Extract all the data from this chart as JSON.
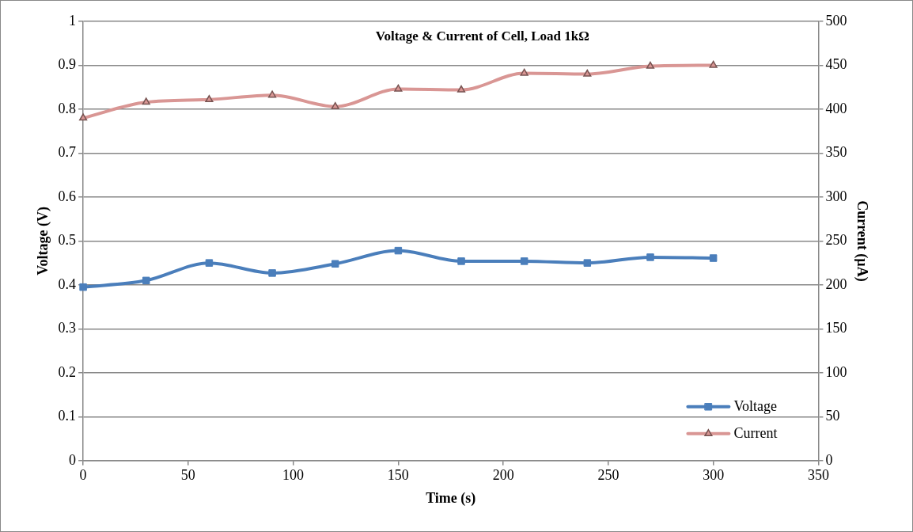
{
  "chart_data": {
    "type": "line",
    "title": "Voltage & Current of Cell, Load 1kΩ",
    "xlabel": "Time (s)",
    "ylabel": "Voltage (V)",
    "y2label": "Current (µA)",
    "x": [
      0,
      30,
      60,
      90,
      120,
      150,
      180,
      210,
      240,
      270,
      300
    ],
    "series": [
      {
        "name": "Voltage",
        "color": "#4a7ebb",
        "marker": "square",
        "values": [
          0.395,
          0.41,
          0.45,
          0.427,
          0.448,
          0.478,
          0.454,
          0.454,
          0.45,
          0.463,
          0.461
        ]
      },
      {
        "name": "Current",
        "color": "#d99694",
        "marker": "triangle",
        "axis": "y2",
        "values": [
          390,
          408,
          411,
          416,
          403,
          423,
          422,
          441,
          440,
          449,
          450
        ]
      }
    ],
    "xlim": [
      0,
      350
    ],
    "xticks": [
      0,
      50,
      100,
      150,
      200,
      250,
      300,
      350
    ],
    "ylim": [
      0,
      1
    ],
    "yticks": [
      0,
      0.1,
      0.2,
      0.3,
      0.4,
      0.5,
      0.6,
      0.7,
      0.8,
      0.9,
      1
    ],
    "y2lim": [
      0,
      500
    ],
    "y2ticks": [
      0,
      50,
      100,
      150,
      200,
      250,
      300,
      350,
      400,
      450,
      500
    ],
    "grid": "y",
    "legend": "bottom right"
  }
}
